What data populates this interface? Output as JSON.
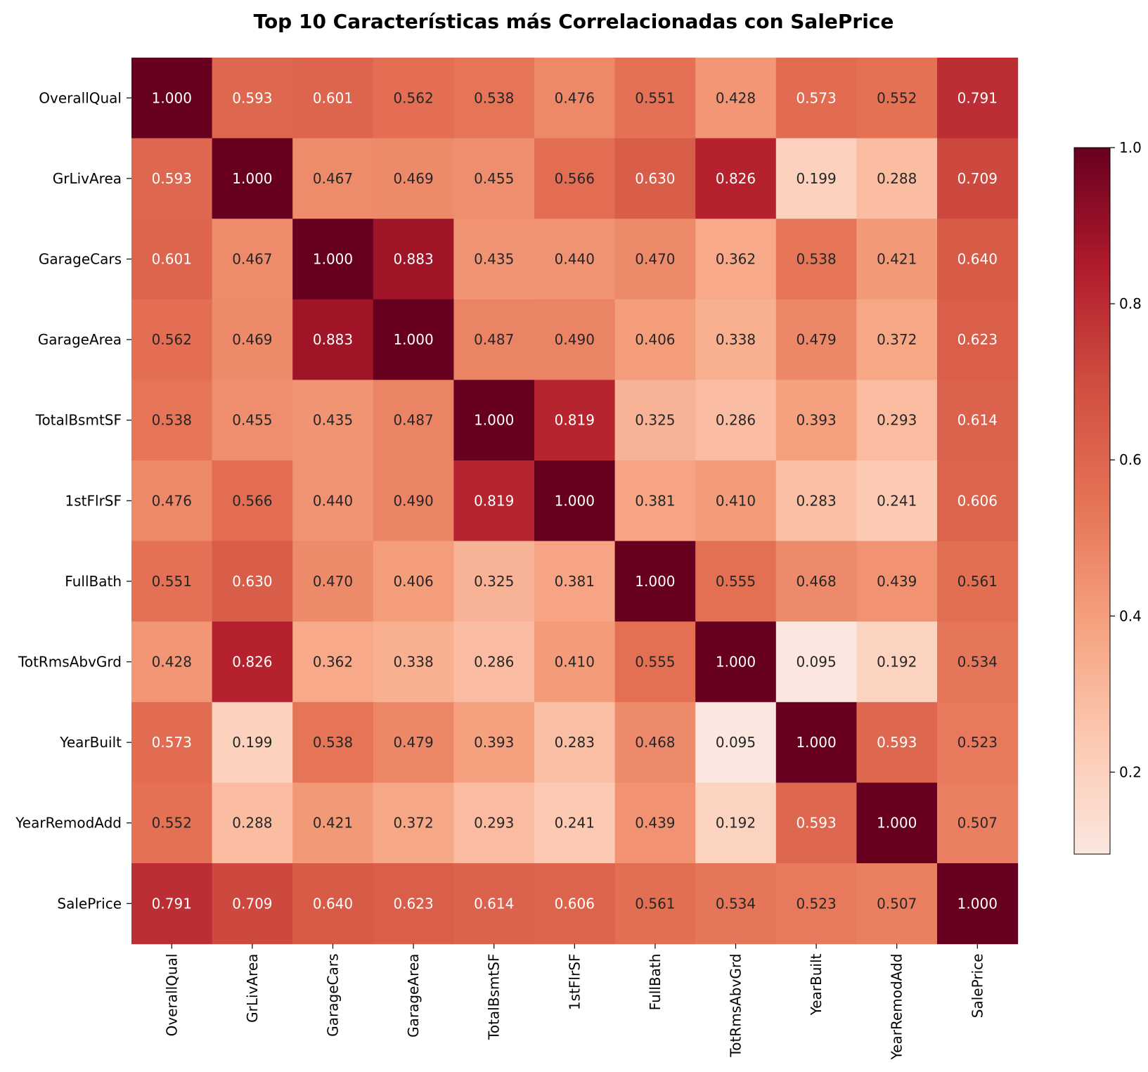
{
  "chart_data": {
    "type": "heatmap",
    "title": "Top 10 Características más Correlacionadas con SalePrice",
    "xlabel": "",
    "ylabel": "",
    "labels": [
      "OverallQual",
      "GrLivArea",
      "GarageCars",
      "GarageArea",
      "TotalBsmtSF",
      "1stFlrSF",
      "FullBath",
      "TotRmsAbvGrd",
      "YearBuilt",
      "YearRemodAdd",
      "SalePrice"
    ],
    "matrix": [
      [
        1.0,
        0.593,
        0.601,
        0.562,
        0.538,
        0.476,
        0.551,
        0.428,
        0.573,
        0.552,
        0.791
      ],
      [
        0.593,
        1.0,
        0.467,
        0.469,
        0.455,
        0.566,
        0.63,
        0.826,
        0.199,
        0.288,
        0.709
      ],
      [
        0.601,
        0.467,
        1.0,
        0.883,
        0.435,
        0.44,
        0.47,
        0.362,
        0.538,
        0.421,
        0.64
      ],
      [
        0.562,
        0.469,
        0.883,
        1.0,
        0.487,
        0.49,
        0.406,
        0.338,
        0.479,
        0.372,
        0.623
      ],
      [
        0.538,
        0.455,
        0.435,
        0.487,
        1.0,
        0.819,
        0.325,
        0.286,
        0.393,
        0.293,
        0.614
      ],
      [
        0.476,
        0.566,
        0.44,
        0.49,
        0.819,
        1.0,
        0.381,
        0.41,
        0.283,
        0.241,
        0.606
      ],
      [
        0.551,
        0.63,
        0.47,
        0.406,
        0.325,
        0.381,
        1.0,
        0.555,
        0.468,
        0.439,
        0.561
      ],
      [
        0.428,
        0.826,
        0.362,
        0.338,
        0.286,
        0.41,
        0.555,
        1.0,
        0.095,
        0.192,
        0.534
      ],
      [
        0.573,
        0.199,
        0.538,
        0.479,
        0.393,
        0.283,
        0.468,
        0.095,
        1.0,
        0.593,
        0.523
      ],
      [
        0.552,
        0.288,
        0.421,
        0.372,
        0.293,
        0.241,
        0.439,
        0.192,
        0.593,
        1.0,
        0.507
      ],
      [
        0.791,
        0.709,
        0.64,
        0.623,
        0.614,
        0.606,
        0.561,
        0.534,
        0.523,
        0.507,
        1.0
      ]
    ],
    "value_format": "3 decimals",
    "colormap": "Reds",
    "colormap_stops": [
      "#fbe7df",
      "#fcc8b0",
      "#f5a07e",
      "#e57255",
      "#cf4d40",
      "#b01a2b",
      "#67001f"
    ],
    "colorbar": {
      "range": [
        0.095,
        1.0
      ],
      "ticks": [
        0.2,
        0.4,
        0.6,
        0.8,
        1.0
      ],
      "tick_labels": [
        "0.2",
        "0.4",
        "0.6",
        "0.8",
        "1.0"
      ]
    },
    "grid": false,
    "legend": "colorbar right"
  }
}
